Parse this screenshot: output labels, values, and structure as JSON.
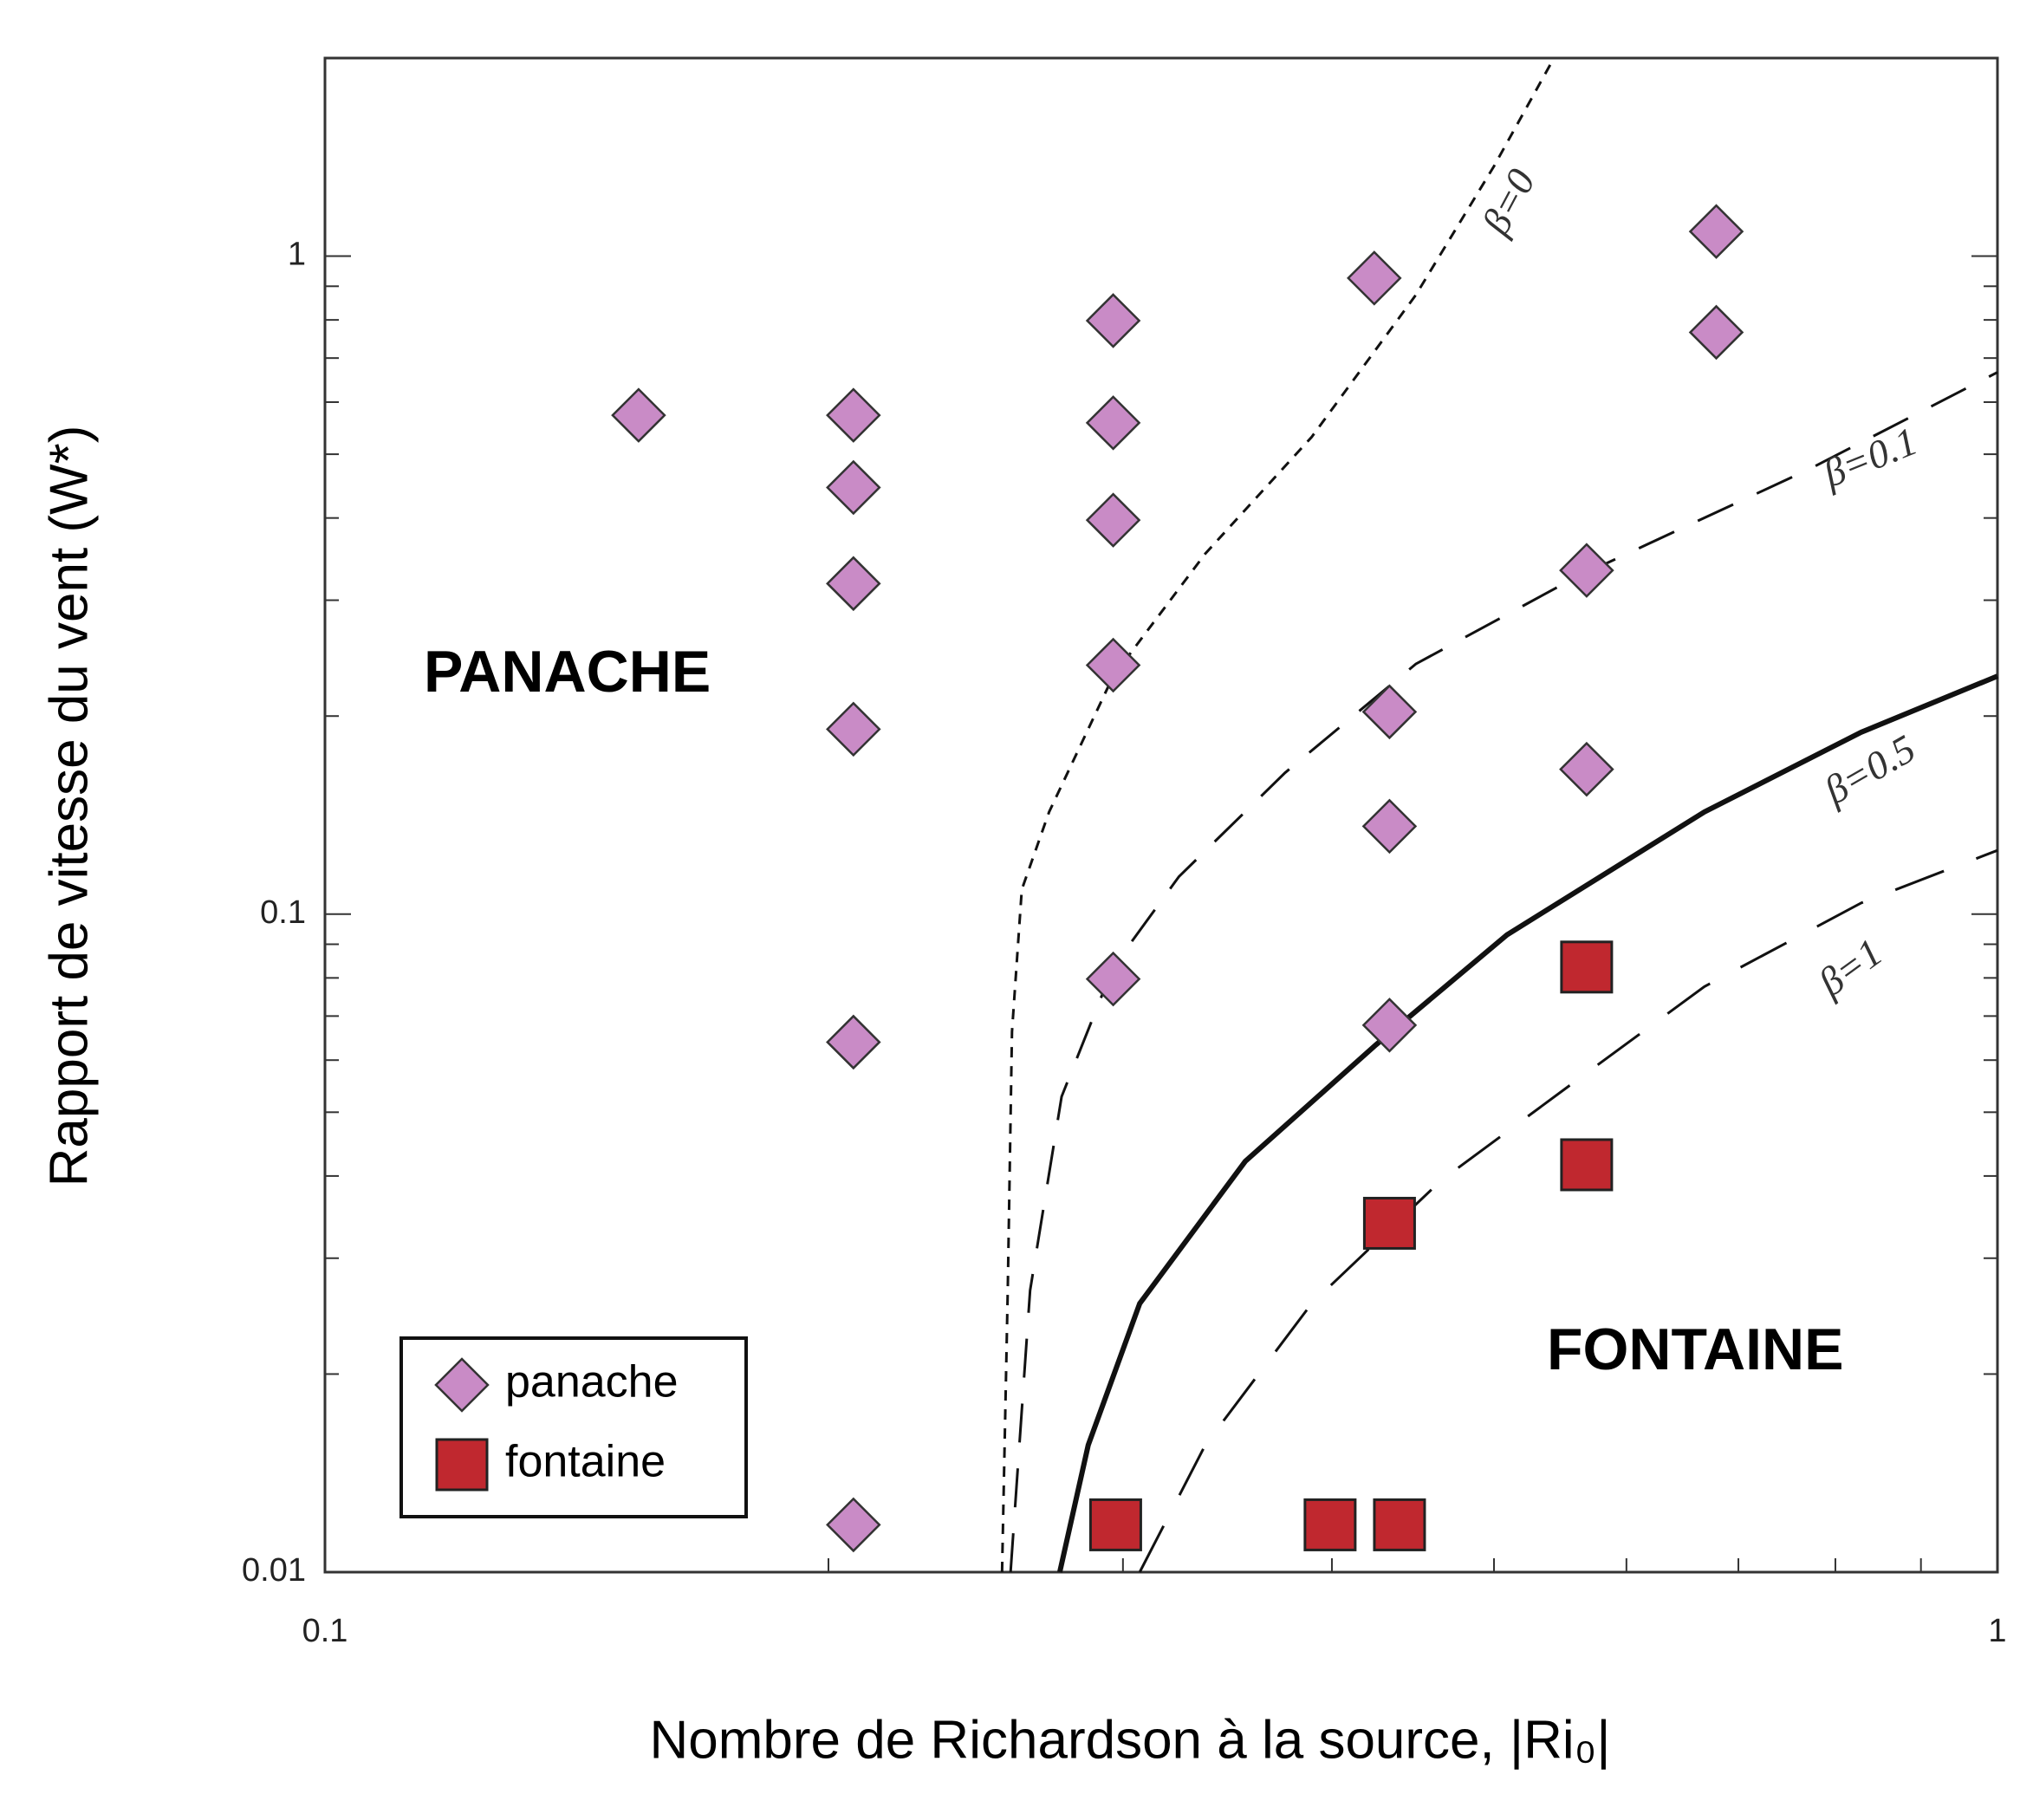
{
  "chart_data": {
    "type": "scatter",
    "xlabel": "Nombre de Richardson à la source, |Ri₀|",
    "ylabel": "Rapport de vitesse du vent (W*)",
    "xscale": "log",
    "yscale": "log",
    "xlim": [
      0.1,
      1
    ],
    "ylim": [
      0.01,
      2
    ],
    "xticks": [
      0.1,
      1
    ],
    "yticks": [
      0.01,
      0.1,
      1
    ],
    "xminor_ticks": [
      0.2,
      0.3,
      0.4,
      0.5,
      0.6,
      0.7,
      0.8,
      0.9
    ],
    "yminor_ticks": [
      0.02,
      0.03,
      0.04,
      0.05,
      0.06,
      0.07,
      0.08,
      0.09,
      0.2,
      0.3,
      0.4,
      0.5,
      0.6,
      0.7,
      0.8,
      0.9
    ],
    "legend": "lower left",
    "region_labels": [
      "PANACHE",
      "FONTAINE"
    ],
    "series": [
      {
        "name": "panache",
        "marker": "diamond",
        "color": "#c98bc6",
        "x": [
          0.154,
          0.207,
          0.207,
          0.207,
          0.207,
          0.207,
          0.207,
          0.296,
          0.296,
          0.296,
          0.296,
          0.296,
          0.424,
          0.433,
          0.433,
          0.433,
          0.568,
          0.568,
          0.679,
          0.679
        ],
        "values": [
          0.573,
          0.573,
          0.445,
          0.318,
          0.191,
          0.0639,
          0.0118,
          0.798,
          0.558,
          0.397,
          0.239,
          0.0797,
          0.926,
          0.203,
          0.136,
          0.0678,
          0.333,
          0.166,
          1.09,
          0.766
        ]
      },
      {
        "name": "fontaine",
        "marker": "square",
        "color": "#c0282f",
        "x": [
          0.297,
          0.399,
          0.439,
          0.568,
          0.568,
          0.433
        ],
        "values": [
          0.0118,
          0.0118,
          0.0118,
          0.0831,
          0.0416,
          0.0339
        ]
      }
    ],
    "curves": [
      {
        "label": "β=0",
        "dash": "12 10",
        "width": 3,
        "x": [
          0.254,
          0.256,
          0.2575,
          0.261,
          0.271,
          0.296,
          0.336,
          0.389,
          0.449,
          0.5,
          0.543
        ],
        "values": [
          0.01,
          0.0268,
          0.0663,
          0.109,
          0.143,
          0.23,
          0.353,
          0.531,
          0.873,
          1.37,
          2
        ]
      },
      {
        "label": "β=0.1",
        "dash": "45 30",
        "width": 3,
        "x": [
          0.257,
          0.264,
          0.2757,
          0.296,
          0.324,
          0.375,
          0.449,
          0.557,
          0.771,
          1
        ],
        "values": [
          0.01,
          0.0268,
          0.0528,
          0.0831,
          0.114,
          0.164,
          0.24,
          0.323,
          0.474,
          0.666
        ]
      },
      {
        "label": "β=0.5",
        "dash": "none",
        "width": 6,
        "x": [
          0.275,
          0.286,
          0.307,
          0.355,
          0.425,
          0.509,
          0.668,
          0.829,
          1
        ],
        "values": [
          0.01,
          0.0156,
          0.0256,
          0.0421,
          0.0633,
          0.093,
          0.143,
          0.189,
          0.23
        ]
      },
      {
        "label": "β=1",
        "dash": "60 40",
        "width": 3,
        "x": [
          0.307,
          0.336,
          0.389,
          0.465,
          0.557,
          0.668,
          0.829,
          1
        ],
        "values": [
          0.01,
          0.0156,
          0.0256,
          0.0394,
          0.0553,
          0.0776,
          0.104,
          0.125
        ]
      }
    ]
  }
}
